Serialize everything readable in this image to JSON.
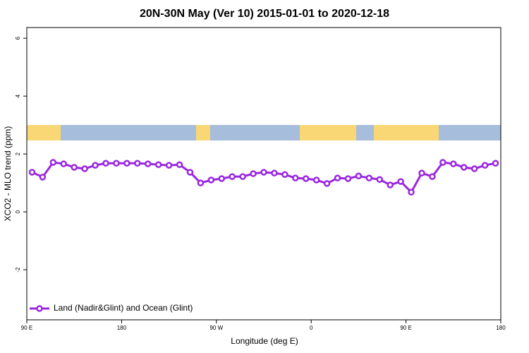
{
  "chart_data": {
    "type": "line",
    "title": "20N-30N May (Ver 10)   2015-01-01 to 2020-12-18",
    "x_label": "Longitude (deg E)",
    "y_label": "XCO2 - MLO trend (ppm)",
    "x": [
      95,
      105,
      115,
      125,
      135,
      145,
      155,
      165,
      175,
      185,
      195,
      205,
      215,
      225,
      235,
      245,
      255,
      265,
      275,
      285,
      295,
      305,
      315,
      325,
      335,
      345,
      355,
      365,
      375,
      385,
      395,
      405,
      415,
      425,
      435,
      445,
      455,
      465,
      475,
      485,
      495,
      505,
      515,
      525,
      535
    ],
    "series": [
      {
        "name": "Land (Nadir&Glint) and Ocean (Glint)",
        "color": "#9a27e0",
        "values": [
          1.37,
          1.2,
          1.71,
          1.66,
          1.54,
          1.49,
          1.61,
          1.68,
          1.68,
          1.68,
          1.68,
          1.66,
          1.63,
          1.61,
          1.63,
          1.37,
          1.0,
          1.1,
          1.15,
          1.22,
          1.22,
          1.32,
          1.37,
          1.34,
          1.29,
          1.17,
          1.15,
          1.1,
          0.98,
          1.17,
          1.15,
          1.24,
          1.17,
          1.12,
          0.93,
          1.05,
          0.68,
          1.34,
          1.22,
          1.71,
          1.66,
          1.54,
          1.49,
          1.61,
          1.68
        ]
      }
    ],
    "xlim": [
      90,
      540
    ],
    "ylim": [
      -3.73,
      6.37
    ],
    "xticks": [
      {
        "value": 90,
        "label": "90 E"
      },
      180,
      {
        "value": 270,
        "label": "90 W"
      },
      {
        "value": 360,
        "label": "0"
      },
      {
        "value": 450,
        "label": "90 E"
      },
      {
        "value": 540,
        "label": "180"
      }
    ],
    "yticks": [
      -2,
      0,
      2,
      4,
      6
    ],
    "legend": "bottom-left"
  }
}
